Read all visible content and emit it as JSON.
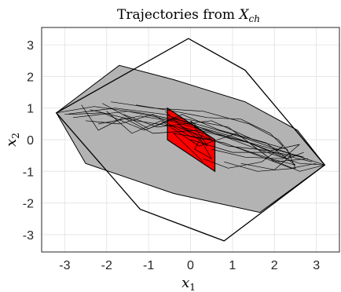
{
  "chart_data": {
    "type": "line",
    "title": "Trajectories from X_ch",
    "title_main": "Trajectories from ",
    "title_sym": "X",
    "title_sub": "ch",
    "xlabel_sym": "x",
    "xlabel_sub": "1",
    "ylabel_sym": "x",
    "ylabel_sub": "2",
    "xlim": [
      -3.55,
      3.55
    ],
    "ylim": [
      -3.55,
      3.55
    ],
    "xticks": [
      -3,
      -2,
      -1,
      0,
      1,
      2,
      3
    ],
    "yticks": [
      -3,
      -2,
      -1,
      0,
      1,
      2,
      3
    ],
    "xtick_labels": [
      "-3",
      "-2",
      "-1",
      "0",
      "1",
      "2",
      "3"
    ],
    "ytick_labels": [
      "-3",
      "-2",
      "-1",
      "0",
      "1",
      "2",
      "3"
    ],
    "grid": true,
    "colors": {
      "outer_set": "#000000",
      "reach_fill": "#b3b3b3",
      "inner_fill": "#ff0000",
      "trajectory": "#000000",
      "grid": "#e6e6e6"
    },
    "outer_hexagon": [
      [
        -3.2,
        0.85
      ],
      [
        -0.05,
        3.2
      ],
      [
        1.3,
        2.2
      ],
      [
        3.2,
        -0.8
      ],
      [
        0.8,
        -3.2
      ],
      [
        -1.2,
        -2.2
      ]
    ],
    "reach_polygon": [
      [
        -3.2,
        0.85
      ],
      [
        -1.7,
        2.35
      ],
      [
        -0.4,
        1.9
      ],
      [
        1.3,
        1.2
      ],
      [
        2.55,
        0.3
      ],
      [
        3.2,
        -0.8
      ],
      [
        1.65,
        -2.3
      ],
      [
        -0.4,
        -1.7
      ],
      [
        -2.5,
        -0.75
      ]
    ],
    "inner_parallelogram": [
      [
        -0.55,
        1.0
      ],
      [
        0.58,
        0.0
      ],
      [
        0.58,
        -1.0
      ],
      [
        -0.55,
        0.0
      ]
    ],
    "trajectories": [
      [
        [
          -3.2,
          0.85
        ],
        [
          -2.3,
          1.05
        ],
        [
          -1.2,
          0.85
        ],
        [
          0.0,
          0.55
        ],
        [
          1.3,
          0.05
        ],
        [
          2.4,
          -0.45
        ],
        [
          3.2,
          -0.8
        ]
      ],
      [
        [
          -3.0,
          0.8
        ],
        [
          -1.8,
          1.0
        ],
        [
          -0.6,
          0.8
        ],
        [
          0.4,
          0.3
        ],
        [
          1.6,
          -0.3
        ],
        [
          2.6,
          -0.75
        ],
        [
          3.2,
          -0.8
        ]
      ],
      [
        [
          -2.8,
          0.7
        ],
        [
          -1.5,
          0.9
        ],
        [
          -0.2,
          0.55
        ],
        [
          1.0,
          0.1
        ],
        [
          2.1,
          -0.45
        ],
        [
          2.9,
          -0.7
        ]
      ],
      [
        [
          -2.6,
          1.1
        ],
        [
          -2.2,
          0.3
        ],
        [
          -1.6,
          0.7
        ],
        [
          -0.9,
          0.2
        ],
        [
          0.2,
          0.3
        ],
        [
          1.4,
          -0.1
        ],
        [
          2.3,
          -0.6
        ],
        [
          2.7,
          -0.4
        ]
      ],
      [
        [
          -2.4,
          0.95
        ],
        [
          -1.3,
          0.6
        ],
        [
          -0.3,
          0.4
        ],
        [
          0.9,
          -0.2
        ],
        [
          1.9,
          -0.35
        ],
        [
          2.6,
          -0.15
        ],
        [
          2.2,
          -0.6
        ],
        [
          1.3,
          -0.55
        ],
        [
          0.5,
          -0.3
        ]
      ],
      [
        [
          -1.9,
          1.2
        ],
        [
          -0.9,
          1.0
        ],
        [
          0.3,
          0.9
        ],
        [
          1.4,
          0.5
        ],
        [
          2.1,
          0.0
        ],
        [
          2.4,
          -0.5
        ],
        [
          2.0,
          -0.95
        ],
        [
          1.2,
          -0.75
        ]
      ],
      [
        [
          -2.2,
          0.5
        ],
        [
          -1.2,
          0.75
        ],
        [
          -0.5,
          0.6
        ],
        [
          0.6,
          0.2
        ],
        [
          1.7,
          -0.2
        ],
        [
          2.7,
          -0.55
        ],
        [
          2.0,
          -0.4
        ],
        [
          1.0,
          -0.4
        ],
        [
          0.0,
          0.0
        ]
      ],
      [
        [
          -2.0,
          0.9
        ],
        [
          -1.4,
          0.2
        ],
        [
          -0.7,
          0.6
        ],
        [
          0.2,
          -0.2
        ],
        [
          1.1,
          0.2
        ],
        [
          2.0,
          -0.7
        ],
        [
          2.8,
          -0.6
        ]
      ],
      [
        [
          -1.6,
          0.8
        ],
        [
          -0.8,
          0.4
        ],
        [
          0.5,
          0.6
        ],
        [
          1.5,
          0.0
        ],
        [
          2.3,
          -0.3
        ],
        [
          2.5,
          -0.9
        ],
        [
          1.6,
          -1.0
        ],
        [
          0.8,
          -0.7
        ]
      ],
      [
        [
          -2.9,
          0.8
        ],
        [
          -2.1,
          0.85
        ],
        [
          -1.1,
          0.3
        ],
        [
          -0.3,
          0.7
        ],
        [
          0.9,
          0.4
        ],
        [
          1.9,
          -0.6
        ],
        [
          2.6,
          -1.0
        ],
        [
          3.2,
          -0.8
        ]
      ],
      [
        [
          -1.3,
          1.1
        ],
        [
          -0.4,
          0.9
        ],
        [
          0.4,
          0.7
        ],
        [
          1.2,
          0.65
        ],
        [
          1.9,
          0.2
        ],
        [
          2.2,
          -0.2
        ],
        [
          1.7,
          -0.7
        ],
        [
          0.9,
          -0.9
        ],
        [
          0.3,
          -0.6
        ]
      ],
      [
        [
          -2.5,
          0.6
        ],
        [
          -1.7,
          0.5
        ],
        [
          -0.9,
          0.8
        ],
        [
          0.0,
          0.1
        ],
        [
          0.8,
          -0.1
        ],
        [
          1.6,
          -0.5
        ],
        [
          2.4,
          -0.9
        ],
        [
          3.0,
          -0.75
        ]
      ],
      [
        [
          -2.1,
          1.15
        ],
        [
          -1.0,
          0.35
        ],
        [
          -0.2,
          0.8
        ],
        [
          0.7,
          0.3
        ],
        [
          1.8,
          -0.1
        ],
        [
          2.5,
          -0.8
        ],
        [
          1.9,
          -0.6
        ],
        [
          1.0,
          -0.2
        ]
      ],
      [
        [
          -0.6,
          0.9
        ],
        [
          -0.2,
          0.4
        ],
        [
          0.3,
          0.2
        ],
        [
          0.1,
          -0.3
        ],
        [
          0.5,
          -0.6
        ],
        [
          0.2,
          0.1
        ],
        [
          -0.3,
          0.5
        ],
        [
          0.4,
          -0.2
        ],
        [
          0.0,
          0.6
        ],
        [
          0.5,
          0.0
        ],
        [
          -0.4,
          0.2
        ],
        [
          0.3,
          -0.7
        ]
      ]
    ]
  }
}
